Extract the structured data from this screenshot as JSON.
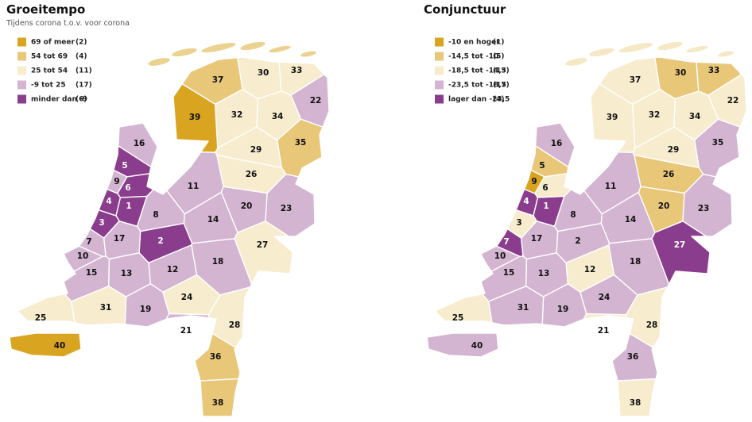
{
  "maps": [
    {
      "title": "Groeitempo",
      "subtitle": "Tijdens corona t.o.v. voor corona",
      "legend": [
        {
          "label": "69 of meer",
          "count": "(2)",
          "color": "#d9a521"
        },
        {
          "label": "54 tot 69",
          "count": "(4)",
          "color": "#e8c778"
        },
        {
          "label": "25 tot 54",
          "count": "(11)",
          "color": "#f7ecce"
        },
        {
          "label": "-9 tot 25",
          "count": "(17)",
          "color": "#d3b4d1"
        },
        {
          "label": "minder dan -9",
          "count": "(6)",
          "color": "#8b3d8d"
        }
      ],
      "regions": [
        {
          "label": "1",
          "class": 4
        },
        {
          "label": "2",
          "class": 4
        },
        {
          "label": "3",
          "class": 4
        },
        {
          "label": "4",
          "class": 4
        },
        {
          "label": "5",
          "class": 4
        },
        {
          "label": "6",
          "class": 4
        },
        {
          "label": "7",
          "class": 3
        },
        {
          "label": "8",
          "class": 3
        },
        {
          "label": "9",
          "class": 3
        },
        {
          "label": "10",
          "class": 3
        },
        {
          "label": "11",
          "class": 3
        },
        {
          "label": "12",
          "class": 3
        },
        {
          "label": "13",
          "class": 3
        },
        {
          "label": "14",
          "class": 3
        },
        {
          "label": "15",
          "class": 3
        },
        {
          "label": "16",
          "class": 3
        },
        {
          "label": "17",
          "class": 3
        },
        {
          "label": "18",
          "class": 3
        },
        {
          "label": "19",
          "class": 3
        },
        {
          "label": "20",
          "class": 3
        },
        {
          "label": "21",
          "class": 3
        },
        {
          "label": "22",
          "class": 3
        },
        {
          "label": "23",
          "class": 3
        },
        {
          "label": "24",
          "class": 2
        },
        {
          "label": "25",
          "class": 2
        },
        {
          "label": "26",
          "class": 2
        },
        {
          "label": "27",
          "class": 2
        },
        {
          "label": "28",
          "class": 2
        },
        {
          "label": "29",
          "class": 2
        },
        {
          "label": "30",
          "class": 2
        },
        {
          "label": "31",
          "class": 2
        },
        {
          "label": "32",
          "class": 2
        },
        {
          "label": "33",
          "class": 2
        },
        {
          "label": "34",
          "class": 2
        },
        {
          "label": "35",
          "class": 1
        },
        {
          "label": "36",
          "class": 1
        },
        {
          "label": "37",
          "class": 1
        },
        {
          "label": "38",
          "class": 1
        },
        {
          "label": "39",
          "class": 0
        },
        {
          "label": "40",
          "class": 0
        }
      ]
    },
    {
      "title": "Conjunctuur",
      "legend": [
        {
          "label": "-10 en hoger",
          "count": "(1)",
          "color": "#d9a521"
        },
        {
          "label": "-14,5 tot -10",
          "count": "(5)",
          "color": "#e8c778"
        },
        {
          "label": "-18,5 tot -14,5",
          "count": "(13)",
          "color": "#f7ecce"
        },
        {
          "label": "-23,5 tot -18,5",
          "count": "(17)",
          "color": "#d3b4d1"
        },
        {
          "label": "lager dan -23,5",
          "count": "(4)",
          "color": "#8b3d8d"
        }
      ],
      "regions": [
        {
          "label": "1",
          "class": 4
        },
        {
          "label": "2",
          "class": 3
        },
        {
          "label": "3",
          "class": 2
        },
        {
          "label": "4",
          "class": 4
        },
        {
          "label": "5",
          "class": 1
        },
        {
          "label": "6",
          "class": 2
        },
        {
          "label": "7",
          "class": 4
        },
        {
          "label": "8",
          "class": 3
        },
        {
          "label": "9",
          "class": 0
        },
        {
          "label": "10",
          "class": 3
        },
        {
          "label": "11",
          "class": 3
        },
        {
          "label": "12",
          "class": 2
        },
        {
          "label": "13",
          "class": 3
        },
        {
          "label": "14",
          "class": 3
        },
        {
          "label": "15",
          "class": 3
        },
        {
          "label": "16",
          "class": 3
        },
        {
          "label": "17",
          "class": 3
        },
        {
          "label": "18",
          "class": 3
        },
        {
          "label": "19",
          "class": 3
        },
        {
          "label": "20",
          "class": 1
        },
        {
          "label": "21",
          "class": 2
        },
        {
          "label": "22",
          "class": 2
        },
        {
          "label": "23",
          "class": 3
        },
        {
          "label": "24",
          "class": 3
        },
        {
          "label": "25",
          "class": 2
        },
        {
          "label": "26",
          "class": 1
        },
        {
          "label": "27",
          "class": 4
        },
        {
          "label": "28",
          "class": 2
        },
        {
          "label": "29",
          "class": 2
        },
        {
          "label": "30",
          "class": 1
        },
        {
          "label": "31",
          "class": 3
        },
        {
          "label": "32",
          "class": 2
        },
        {
          "label": "33",
          "class": 1
        },
        {
          "label": "34",
          "class": 2
        },
        {
          "label": "35",
          "class": 3
        },
        {
          "label": "36",
          "class": 3
        },
        {
          "label": "37",
          "class": 2
        },
        {
          "label": "38",
          "class": 2
        },
        {
          "label": "39",
          "class": 2
        },
        {
          "label": "40",
          "class": 3
        }
      ]
    }
  ]
}
